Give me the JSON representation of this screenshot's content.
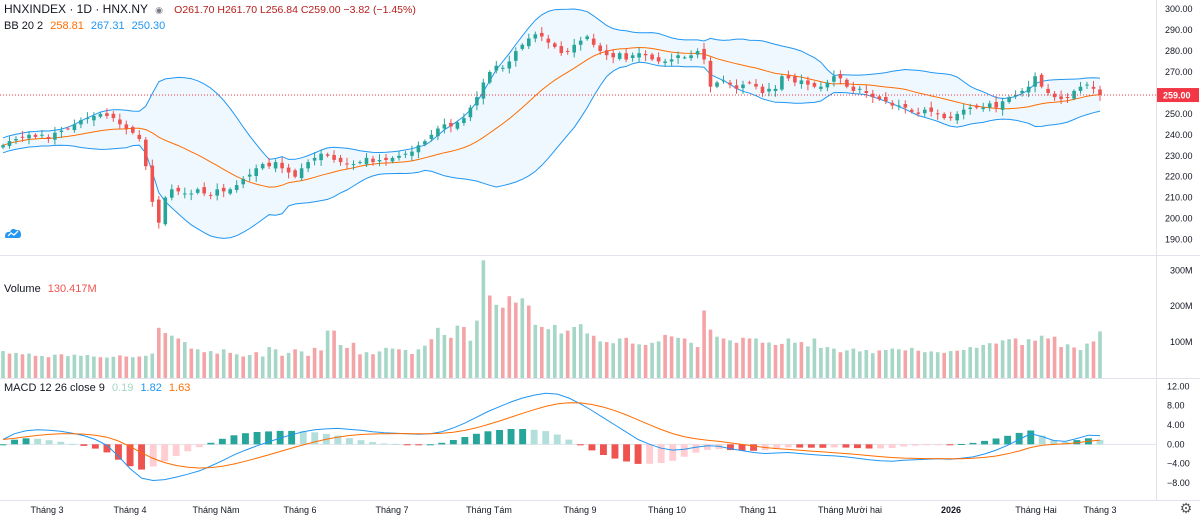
{
  "legend": {
    "symbol": "HNXINDEX · 1D · HNX.NY",
    "ohlc": "O261.70 H261.70 L256.84 C259.00 −3.82 (−1.45%)",
    "bb_label": "BB 20 2",
    "bb_mid": "258.81",
    "bb_upper": "267.31",
    "bb_lower": "250.30",
    "volume_label": "Volume",
    "volume_value": "130.417M",
    "macd_label": "MACD 12 26 close 9",
    "macd_hist": "0.19",
    "macd_line": "1.82",
    "macd_signal": "1.63"
  },
  "colors": {
    "up": "#26a69a",
    "down": "#ef5350",
    "vol_up": "#a5d6c6",
    "vol_down": "#f4a3a6",
    "bb_band": "#2196f3",
    "bb_basis": "#ff6d00",
    "macd_line": "#2196f3",
    "signal_line": "#ff6d00",
    "last_price": "#f23645"
  },
  "price_axis": {
    "ticks": [
      "300.00",
      "290.00",
      "280.00",
      "270.00",
      "260.00",
      "250.00",
      "240.00",
      "230.00",
      "220.00",
      "210.00",
      "200.00",
      "190.00"
    ],
    "last_price": "259.00"
  },
  "volume_axis": {
    "ticks": [
      "300M",
      "200M",
      "100M"
    ]
  },
  "macd_axis": {
    "ticks": [
      "12.00",
      "8.00",
      "4.00",
      "0.00",
      "−4.00",
      "−8.00"
    ]
  },
  "time_axis": {
    "labels": [
      "Tháng 3",
      "Tháng 4",
      "Tháng Năm",
      "Tháng 6",
      "Tháng 7",
      "Tháng Tám",
      "Tháng 9",
      "Tháng 10",
      "Tháng 11",
      "Tháng Mười hai",
      "2026",
      "Tháng Hai",
      "Tháng 3"
    ]
  },
  "chart_data": [
    {
      "type": "candlestick",
      "title": "HNXINDEX, 1D, HNX.NY",
      "y_range": [
        185,
        302
      ],
      "bollinger": {
        "period": 20,
        "mult": 2,
        "last": {
          "basis": 258.81,
          "upper": 267.31,
          "lower": 250.3
        }
      },
      "close": [
        235,
        237,
        238,
        239,
        240,
        239,
        240,
        238,
        241,
        242,
        243,
        245,
        247,
        248,
        249,
        250,
        249,
        248,
        245,
        243,
        241,
        238,
        225,
        208,
        198,
        210,
        214,
        213,
        212,
        212,
        214,
        212,
        211,
        214,
        213,
        214,
        216,
        219,
        221,
        224,
        226,
        225,
        227,
        224,
        222,
        220,
        224,
        227,
        229,
        231,
        230,
        228,
        227,
        226,
        226,
        227,
        229,
        227,
        228,
        228,
        229,
        230,
        231,
        232,
        235,
        237,
        240,
        243,
        245,
        244,
        246,
        248,
        253,
        258,
        265,
        270,
        273,
        272,
        275,
        280,
        283,
        286,
        288,
        287,
        284,
        282,
        279,
        280,
        283,
        285,
        287,
        283,
        280,
        278,
        277,
        279,
        276,
        278,
        279,
        278,
        276,
        275,
        275,
        276,
        278,
        277,
        278,
        280,
        276,
        263,
        265,
        266,
        264,
        262,
        264,
        265,
        263,
        260,
        262,
        262,
        268,
        267,
        265,
        266,
        264,
        263,
        263,
        265,
        268,
        267,
        263,
        261,
        262,
        260,
        258,
        257,
        256,
        254,
        254,
        253,
        251,
        250,
        252,
        251,
        250,
        248,
        248,
        250,
        252,
        253,
        253,
        253,
        255,
        253,
        256,
        258,
        259,
        261,
        263,
        268,
        263,
        260,
        258,
        257,
        258,
        261,
        263,
        264,
        262,
        259
      ],
      "volume_M": [
        75,
        68,
        70,
        66,
        68,
        62,
        61,
        58,
        65,
        66,
        61,
        65,
        62,
        64,
        60,
        58,
        57,
        59,
        63,
        60,
        58,
        60,
        62,
        68,
        140,
        125,
        118,
        110,
        100,
        82,
        80,
        72,
        75,
        68,
        80,
        70,
        66,
        60,
        64,
        72,
        60,
        86,
        80,
        62,
        70,
        80,
        74,
        62,
        84,
        77,
        132,
        132,
        92,
        84,
        98,
        66,
        72,
        66,
        74,
        84,
        82,
        80,
        78,
        67,
        80,
        90,
        108,
        140,
        120,
        112,
        146,
        142,
        104,
        160,
        328,
        230,
        204,
        196,
        228,
        210,
        222,
        202,
        148,
        142,
        136,
        148,
        124,
        132,
        142,
        150,
        124,
        118,
        102,
        100,
        97,
        110,
        112,
        96,
        94,
        92,
        98,
        102,
        120,
        116,
        112,
        110,
        98,
        86,
        188,
        135,
        115,
        110,
        105,
        98,
        112,
        110,
        110,
        98,
        99,
        92,
        95,
        110,
        98,
        100,
        88,
        110,
        84,
        86,
        82,
        72,
        77,
        82,
        74,
        78,
        69,
        77,
        78,
        82,
        80,
        77,
        84,
        76,
        72,
        74,
        72,
        70,
        75,
        76,
        78,
        86,
        84,
        92,
        97,
        96,
        105,
        108,
        110,
        92,
        108,
        104,
        118,
        110,
        115,
        86,
        94,
        85,
        78,
        96,
        102,
        130
      ],
      "macd": [
        1.0,
        2.2,
        2.8,
        3.0,
        2.9,
        2.7,
        2.3,
        1.8,
        1.0,
        -0.2,
        -2.5,
        -5.0,
        -7.0,
        -7.5,
        -7.3,
        -6.8,
        -6.2,
        -5.5,
        -4.5,
        -3.4,
        -2.2,
        -1.2,
        -0.3,
        0.5,
        1.3,
        2.0,
        2.6,
        3.0,
        3.2,
        3.3,
        3.1,
        2.9,
        2.6,
        2.4,
        2.3,
        2.2,
        2.1,
        2.2,
        2.6,
        3.4,
        4.4,
        5.6,
        6.8,
        7.8,
        8.8,
        9.6,
        10.2,
        10.6,
        10.4,
        9.6,
        8.4,
        7.0,
        5.5,
        4.0,
        2.5,
        1.0,
        0.0,
        -0.8,
        -1.2,
        -1.0,
        -0.6,
        -0.3,
        -0.4,
        -0.9,
        -1.3,
        -1.7,
        -1.9,
        -1.8,
        -1.7,
        -1.9,
        -2.1,
        -2.3,
        -2.4,
        -2.6,
        -2.9,
        -3.2,
        -3.4,
        -3.5,
        -3.3,
        -3.2,
        -3.1,
        -3.0,
        -3.1,
        -2.9,
        -2.6,
        -2.0,
        -1.2,
        -0.2,
        1.0,
        2.2,
        1.6,
        0.8,
        0.6,
        1.2,
        1.9,
        1.8
      ]
    }
  ]
}
